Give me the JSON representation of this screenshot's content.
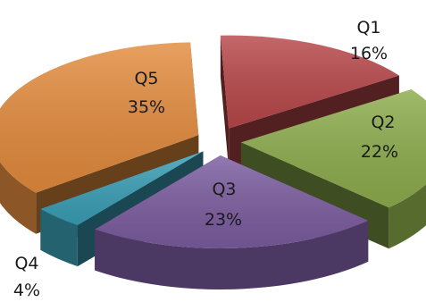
{
  "chart_data": {
    "type": "pie",
    "style": "3d-exploded",
    "categories": [
      "Q1",
      "Q2",
      "Q3",
      "Q4",
      "Q5"
    ],
    "values": [
      16,
      22,
      23,
      4,
      35
    ],
    "value_labels": [
      "16%",
      "22%",
      "23%",
      "4%",
      "35%"
    ],
    "colors": [
      "#b8474a",
      "#8cac4c",
      "#7b5c9f",
      "#3a9eb5",
      "#e38b3d"
    ],
    "title": "",
    "legend": "none"
  }
}
